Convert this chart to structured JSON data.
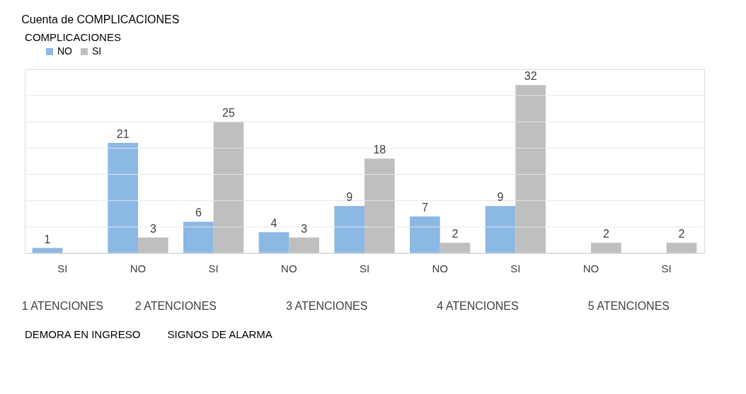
{
  "chart_data": {
    "type": "bar",
    "title": "Cuenta de COMPLICACIONES",
    "legend_title": "COMPLICACIONES",
    "categories": [
      "SI",
      "NO",
      "SI",
      "NO",
      "SI",
      "NO",
      "SI",
      "NO",
      "SI"
    ],
    "series": [
      {
        "name": "NO",
        "color": "#8cb8e4",
        "values": [
          1,
          21,
          6,
          4,
          9,
          7,
          9,
          null,
          null
        ]
      },
      {
        "name": "SI",
        "color": "#bfbfbf",
        "values": [
          null,
          3,
          25,
          3,
          18,
          2,
          32,
          2,
          2
        ]
      }
    ],
    "ylim": [
      0,
      35
    ],
    "yticks": [
      {
        "value": 0,
        "label": null
      },
      {
        "value": 5,
        "label": null
      },
      {
        "value": 10,
        "label": null
      },
      {
        "value": 15,
        "label": null
      },
      {
        "value": 20,
        "label": null
      },
      {
        "value": 25,
        "label": null
      },
      {
        "value": 30,
        "label": null
      },
      {
        "value": 35,
        "label": null
      }
    ],
    "tick_labels": "x",
    "grid": "y",
    "legend": "top",
    "data_labels": true,
    "annotations": [
      "1 ATENCIONES",
      "2 ATENCIONES",
      "3 ATENCIONES",
      "4 ATENCIONES",
      "5 ATENCIONES",
      "DEMORA EN INGRESO",
      "SIGNOS DE ALARMA"
    ]
  }
}
